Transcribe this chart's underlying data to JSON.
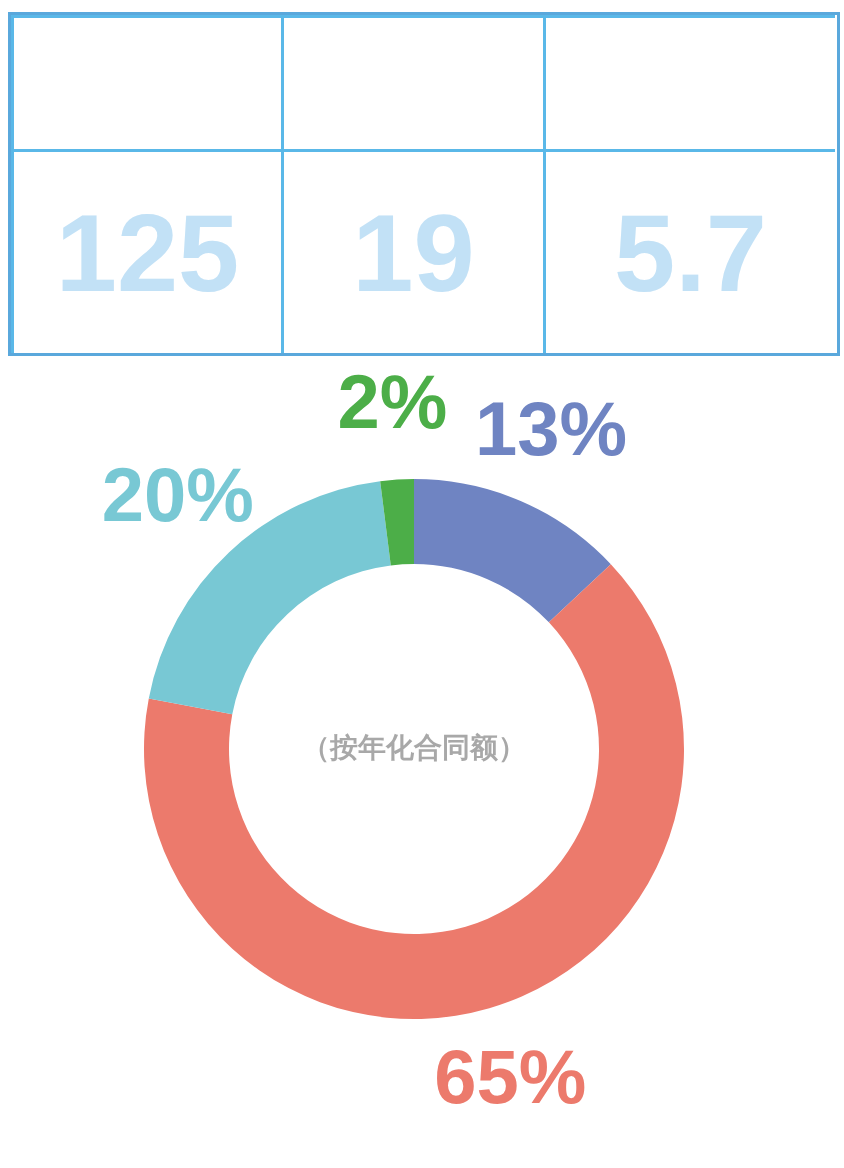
{
  "chart_data": [
    {
      "type": "other",
      "annotations": [
        "125",
        "19",
        "5.7"
      ]
    },
    {
      "type": "donut",
      "categories": [
        null,
        null,
        null,
        null
      ],
      "values": [
        13,
        65,
        20,
        2
      ],
      "colors": [
        "#6f84c2",
        "#ec7a6c",
        "#78c8d4",
        "#4cae48"
      ],
      "value_labels": [
        "13%",
        "65%",
        "20%",
        "2%"
      ],
      "annotations": [
        "（按年化合同额）"
      ]
    }
  ]
}
